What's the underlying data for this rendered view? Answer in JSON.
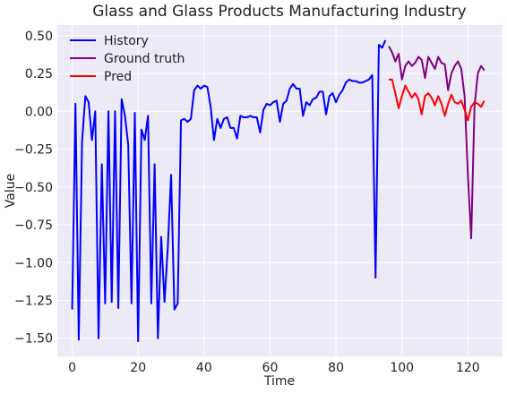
{
  "chart_data": {
    "type": "line",
    "title": "Glass and Glass Products Manufacturing Industry",
    "xlabel": "Time",
    "ylabel": "Value",
    "xlim": [
      -4.5,
      130.5
    ],
    "ylim": [
      -1.62,
      0.57
    ],
    "xticks": [
      0,
      20,
      40,
      60,
      80,
      100,
      120
    ],
    "yticks": [
      -1.5,
      -1.25,
      -1.0,
      -0.75,
      -0.5,
      -0.25,
      0.0,
      0.25,
      0.5
    ],
    "ytick_labels": [
      "−1.50",
      "−1.25",
      "−1.00",
      "−0.75",
      "−0.50",
      "−0.25",
      "0.00",
      "0.25",
      "0.50"
    ],
    "grid": true,
    "legend_position": "top-left",
    "background": "#ECEAF6",
    "series": [
      {
        "name": "History",
        "color": "#0000FF",
        "x_start": 0,
        "values": [
          -1.31,
          0.05,
          -1.51,
          -0.2,
          0.1,
          0.06,
          -0.19,
          0.0,
          -1.5,
          -0.35,
          -1.27,
          0.0,
          -1.26,
          0.0,
          -1.3,
          0.08,
          -0.03,
          -0.22,
          -1.27,
          -0.01,
          -1.52,
          -0.12,
          -0.19,
          -0.03,
          -1.27,
          -0.35,
          -1.5,
          -0.83,
          -1.26,
          -0.9,
          -0.42,
          -1.31,
          -1.27,
          -0.06,
          -0.05,
          -0.07,
          -0.05,
          0.14,
          0.17,
          0.15,
          0.17,
          0.16,
          0.03,
          -0.19,
          -0.05,
          -0.11,
          -0.05,
          -0.04,
          -0.11,
          -0.11,
          -0.18,
          -0.03,
          -0.04,
          -0.04,
          -0.03,
          -0.04,
          -0.04,
          -0.14,
          0.01,
          0.05,
          0.04,
          0.06,
          0.07,
          -0.07,
          0.05,
          0.07,
          0.15,
          0.18,
          0.15,
          0.15,
          -0.03,
          0.06,
          0.04,
          0.08,
          0.09,
          0.13,
          0.13,
          -0.02,
          0.1,
          0.12,
          0.06,
          0.11,
          0.14,
          0.19,
          0.21,
          0.2,
          0.2,
          0.19,
          0.19,
          0.2,
          0.21,
          0.24,
          -1.1,
          0.44,
          0.42,
          0.47
        ]
      },
      {
        "name": "Ground truth",
        "color": "#800080",
        "x_start": 96,
        "values": [
          0.43,
          0.39,
          0.33,
          0.38,
          0.21,
          0.3,
          0.33,
          0.3,
          0.32,
          0.36,
          0.34,
          0.22,
          0.36,
          0.32,
          0.28,
          0.36,
          0.32,
          0.31,
          0.14,
          0.25,
          0.3,
          0.33,
          0.28,
          0.1,
          -0.42,
          -0.84,
          0.03,
          0.25,
          0.3,
          0.27
        ]
      },
      {
        "name": "Pred",
        "color": "#FF0000",
        "x_start": 96,
        "values": [
          0.21,
          0.21,
          0.12,
          0.02,
          0.1,
          0.17,
          0.13,
          0.09,
          0.12,
          0.08,
          -0.02,
          0.1,
          0.12,
          0.09,
          0.04,
          0.1,
          0.05,
          -0.03,
          0.05,
          0.11,
          0.06,
          0.05,
          0.07,
          0.01,
          -0.06,
          0.03,
          0.06,
          0.05,
          0.03,
          0.07
        ]
      }
    ]
  }
}
